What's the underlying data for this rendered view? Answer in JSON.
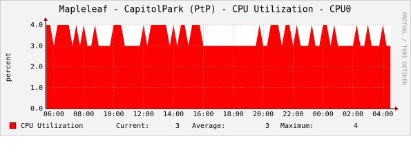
{
  "chart_data": {
    "type": "area",
    "title": "Mapleleaf - CapitolPark (PtP) - CPU Utilization - CPU0",
    "ylabel": "percent",
    "side_text": "RRDTOOL / TOBI OETIKER",
    "x": [
      5.5,
      5.75,
      6,
      6.25,
      6.5,
      6.75,
      7,
      7.25,
      7.5,
      7.75,
      8,
      8.25,
      8.5,
      8.75,
      9,
      9.25,
      9.5,
      9.75,
      10,
      10.25,
      10.5,
      10.75,
      11,
      11.25,
      11.5,
      11.75,
      12,
      12.25,
      12.5,
      12.75,
      13,
      13.25,
      13.5,
      13.75,
      14,
      14.25,
      14.5,
      14.75,
      15,
      15.25,
      15.5,
      15.75,
      16,
      16.25,
      16.5,
      16.75,
      17,
      17.25,
      17.5,
      17.75,
      18,
      18.25,
      18.5,
      18.75,
      19,
      19.25,
      19.5,
      19.75,
      20,
      20.25,
      20.5,
      20.75,
      21,
      21.25,
      21.5,
      21.75,
      22,
      22.25,
      22.5,
      22.75,
      23,
      23.25,
      23.5,
      23.75,
      24,
      24.25,
      24.5,
      24.75,
      25,
      25.25,
      25.5,
      25.75,
      26,
      26.25,
      26.5,
      26.75,
      27,
      27.25,
      27.5,
      27.75,
      28,
      28.25,
      28.5
    ],
    "values": [
      4,
      4,
      3,
      4,
      4,
      4,
      4,
      3,
      4,
      3,
      4,
      3,
      3,
      4,
      3,
      3,
      3,
      3,
      4,
      4,
      4,
      3,
      3,
      3,
      3,
      3,
      4,
      3,
      4,
      4,
      4,
      4,
      4,
      3,
      4,
      3,
      4,
      4,
      3,
      4,
      4,
      4,
      3,
      3,
      3,
      3,
      3,
      3,
      3,
      3,
      3,
      3,
      3,
      3,
      3,
      3,
      3,
      4,
      3,
      3,
      4,
      4,
      4,
      3,
      4,
      4,
      3,
      4,
      3,
      3,
      3,
      4,
      3,
      3,
      4,
      4,
      3,
      4,
      3,
      3,
      3,
      3,
      3,
      4,
      3,
      3,
      4,
      3,
      3,
      3,
      4,
      3,
      3
    ],
    "color": "#ff0000",
    "series_name": "CPU Utilization",
    "stats": [
      {
        "label": "Current:",
        "value": 3
      },
      {
        "label": "Average:",
        "value": 3
      },
      {
        "label": "Maximum:",
        "value": 4
      }
    ],
    "xlim": [
      5.45,
      28.54
    ],
    "ylim": [
      0,
      4
    ],
    "xticks": [
      {
        "value": 6,
        "label": "06:00"
      },
      {
        "value": 8,
        "label": "08:00"
      },
      {
        "value": 10,
        "label": "10:00"
      },
      {
        "value": 12,
        "label": "12:00"
      },
      {
        "value": 14,
        "label": "14:00"
      },
      {
        "value": 16,
        "label": "16:00"
      },
      {
        "value": 18,
        "label": "18:00"
      },
      {
        "value": 20,
        "label": "20:00"
      },
      {
        "value": 22,
        "label": "22:00"
      },
      {
        "value": 24,
        "label": "00:00"
      },
      {
        "value": 26,
        "label": "02:00"
      },
      {
        "value": 28,
        "label": "04:00"
      }
    ],
    "yticks": [
      {
        "value": 0,
        "label": "0.0"
      },
      {
        "value": 1,
        "label": "1.0"
      },
      {
        "value": 2,
        "label": "2.0"
      },
      {
        "value": 3,
        "label": "3.0"
      },
      {
        "value": 4,
        "label": "4.0"
      }
    ],
    "grid": true
  }
}
